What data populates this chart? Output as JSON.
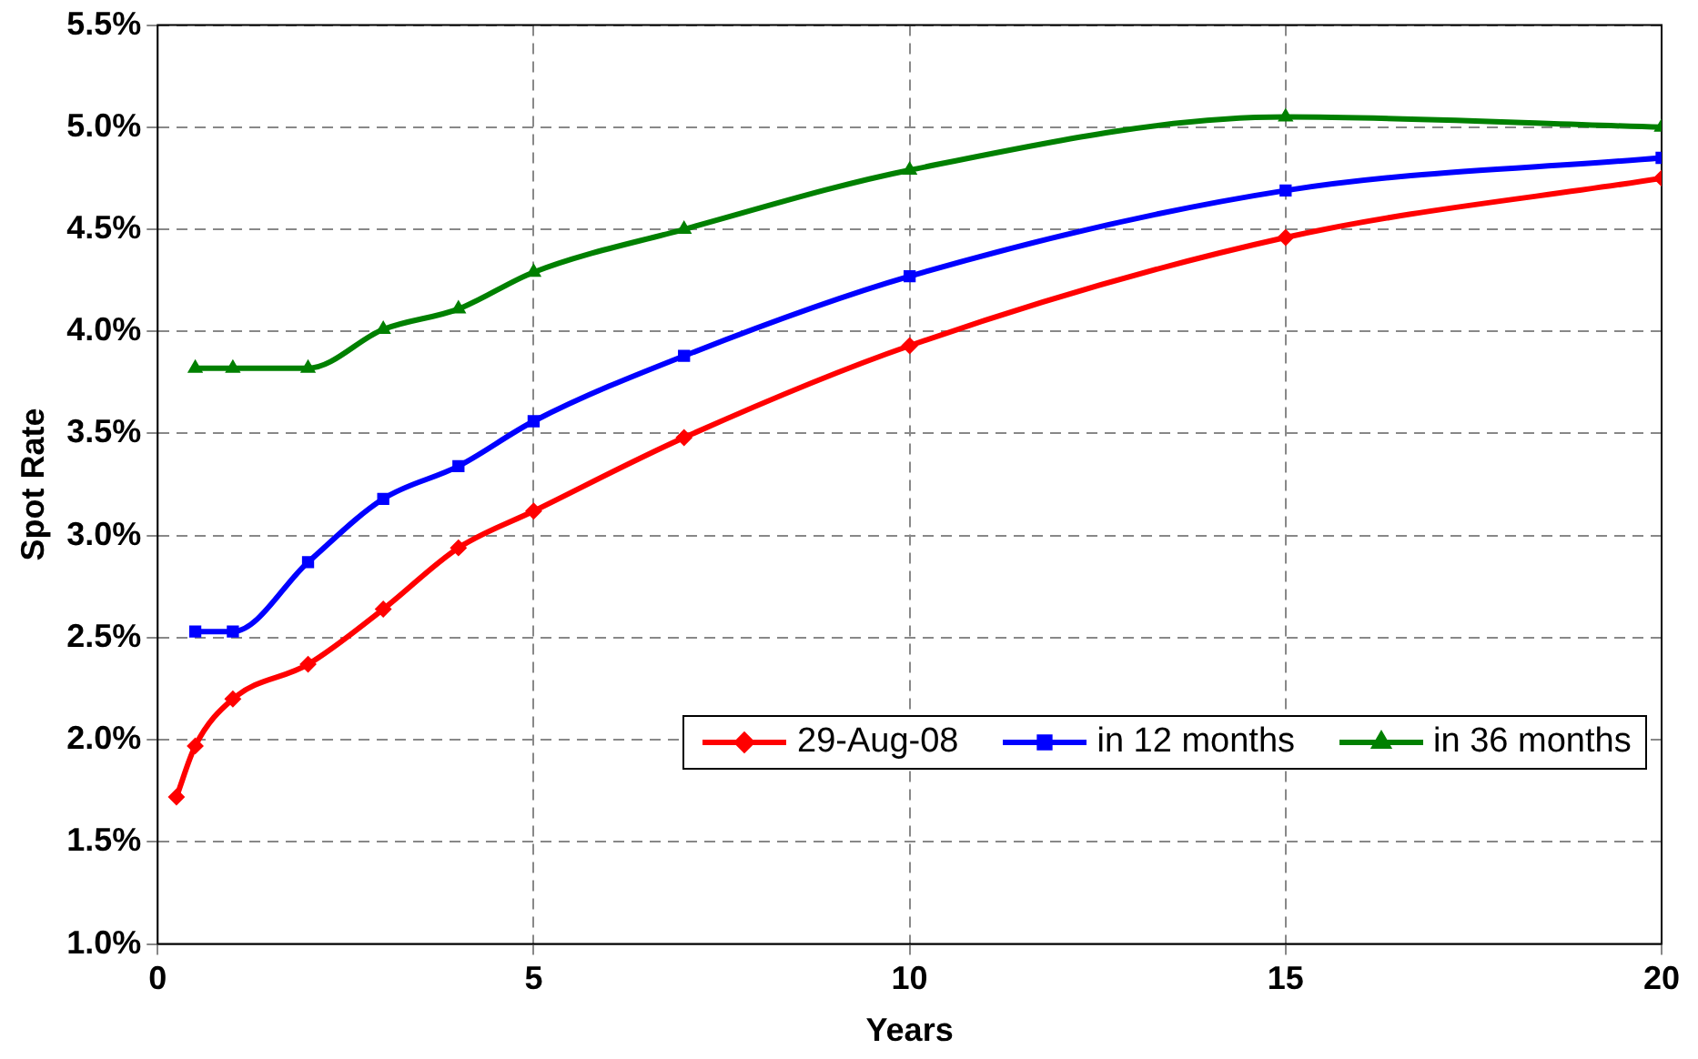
{
  "chart_data": {
    "type": "line",
    "xlabel": "Years",
    "ylabel": "Spot Rate",
    "xlim": [
      0,
      20
    ],
    "xticks": [
      0,
      5,
      10,
      15,
      20
    ],
    "ylim": [
      1.0,
      5.5
    ],
    "yticks": [
      {
        "value": 1.0,
        "label": "1.0%"
      },
      {
        "value": 1.5,
        "label": "1.5%"
      },
      {
        "value": 2.0,
        "label": "2.0%"
      },
      {
        "value": 2.5,
        "label": "2.5%"
      },
      {
        "value": 3.0,
        "label": "3.0%"
      },
      {
        "value": 3.5,
        "label": "3.5%"
      },
      {
        "value": 4.0,
        "label": "4.0%"
      },
      {
        "value": 4.5,
        "label": "4.5%"
      },
      {
        "value": 5.0,
        "label": "5.0%"
      },
      {
        "value": 5.5,
        "label": "5.5%"
      }
    ],
    "grid": true,
    "legend": "bottom right",
    "line_style": "solid",
    "series": [
      {
        "name": "29-Aug-08",
        "color": "#ff0000",
        "marker": "diamond",
        "x": [
          0.25,
          0.5,
          1,
          2,
          3,
          4,
          5,
          7,
          10,
          15,
          20
        ],
        "values": [
          1.72,
          1.97,
          2.2,
          2.37,
          2.64,
          2.94,
          3.12,
          3.48,
          3.93,
          4.46,
          4.75
        ]
      },
      {
        "name": "in 12 months",
        "color": "#0000ff",
        "marker": "square",
        "x": [
          0.5,
          1,
          2,
          3,
          4,
          5,
          7,
          10,
          15,
          20
        ],
        "values": [
          2.53,
          2.53,
          2.87,
          3.18,
          3.34,
          3.56,
          3.88,
          4.27,
          4.69,
          4.85
        ]
      },
      {
        "name": "in 36 months",
        "color": "#008000",
        "marker": "triangle",
        "x": [
          0.5,
          1,
          2,
          3,
          4,
          5,
          7,
          10,
          15,
          20
        ],
        "values": [
          3.82,
          3.82,
          3.82,
          4.01,
          4.11,
          4.29,
          4.5,
          4.79,
          5.05,
          5.0
        ]
      }
    ]
  }
}
